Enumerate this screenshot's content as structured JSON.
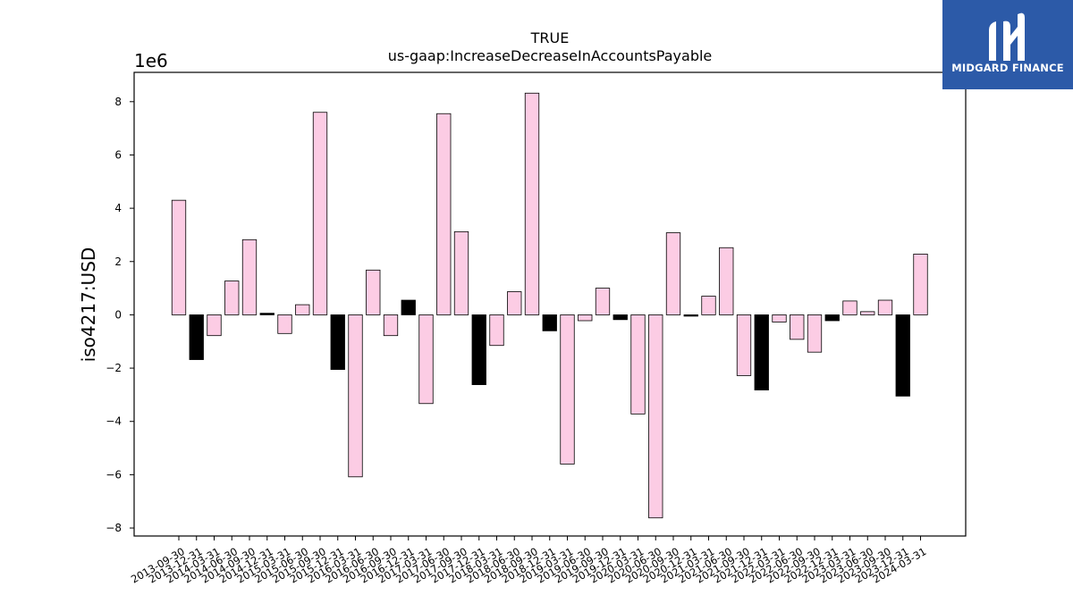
{
  "brand": {
    "name": "MIDGARD FINANCE",
    "color": "#2c5aa8"
  },
  "chart_data": {
    "type": "bar",
    "title": "TRUE",
    "subtitle": "us-gaap:IncreaseDecreaseInAccountsPayable",
    "ylabel": "iso4217:USD",
    "xlabel": "",
    "y_scale_label": "1e6",
    "y_multiplier": 1000000,
    "ylim": [
      -8.3,
      9.1
    ],
    "yticks": [
      -8,
      -6,
      -4,
      -2,
      0,
      2,
      4,
      6,
      8
    ],
    "grid": false,
    "legend": "none",
    "colors": {
      "positive": "#fccce4",
      "negative": "#000000",
      "edge": "#000000"
    },
    "categories": [
      "2013-09-30",
      "2013-12-31",
      "2014-03-31",
      "2014-06-30",
      "2014-09-30",
      "2014-12-31",
      "2015-03-31",
      "2015-06-30",
      "2015-09-30",
      "2015-12-31",
      "2016-03-31",
      "2016-06-30",
      "2016-09-30",
      "2016-12-31",
      "2017-03-31",
      "2017-06-30",
      "2017-09-30",
      "2017-12-31",
      "2018-03-31",
      "2018-06-30",
      "2018-09-30",
      "2018-12-31",
      "2019-03-31",
      "2019-06-30",
      "2019-09-30",
      "2019-12-31",
      "2020-03-31",
      "2020-06-30",
      "2020-09-30",
      "2020-12-31",
      "2021-03-31",
      "2021-06-30",
      "2021-09-30",
      "2021-12-31",
      "2022-03-31",
      "2022-06-30",
      "2022-09-30",
      "2022-12-31",
      "2023-03-31",
      "2023-06-30",
      "2023-09-30",
      "2023-12-31",
      "2024-03-31"
    ],
    "values": [
      4.3,
      -1.68,
      -0.78,
      1.27,
      2.82,
      0.06,
      -0.7,
      0.38,
      7.6,
      -2.05,
      -6.08,
      1.68,
      -0.78,
      0.55,
      -3.33,
      7.55,
      3.12,
      -2.62,
      -1.15,
      0.87,
      8.32,
      -0.6,
      -5.6,
      -0.22,
      1.0,
      -0.18,
      -3.72,
      -7.62,
      3.08,
      -0.05,
      0.7,
      2.52,
      -2.28,
      -2.82,
      -0.27,
      -0.92,
      -1.4,
      -0.22,
      0.52,
      0.12,
      0.55,
      -3.05,
      2.28
    ],
    "bar_colors": [
      "pink",
      "black",
      "pink",
      "pink",
      "pink",
      "black",
      "pink",
      "pink",
      "pink",
      "black",
      "pink",
      "pink",
      "pink",
      "black",
      "pink",
      "pink",
      "pink",
      "black",
      "pink",
      "pink",
      "pink",
      "black",
      "pink",
      "pink",
      "pink",
      "black",
      "pink",
      "pink",
      "pink",
      "black",
      "pink",
      "pink",
      "pink",
      "black",
      "pink",
      "pink",
      "pink",
      "black",
      "pink",
      "pink",
      "pink",
      "black",
      "pink"
    ]
  }
}
